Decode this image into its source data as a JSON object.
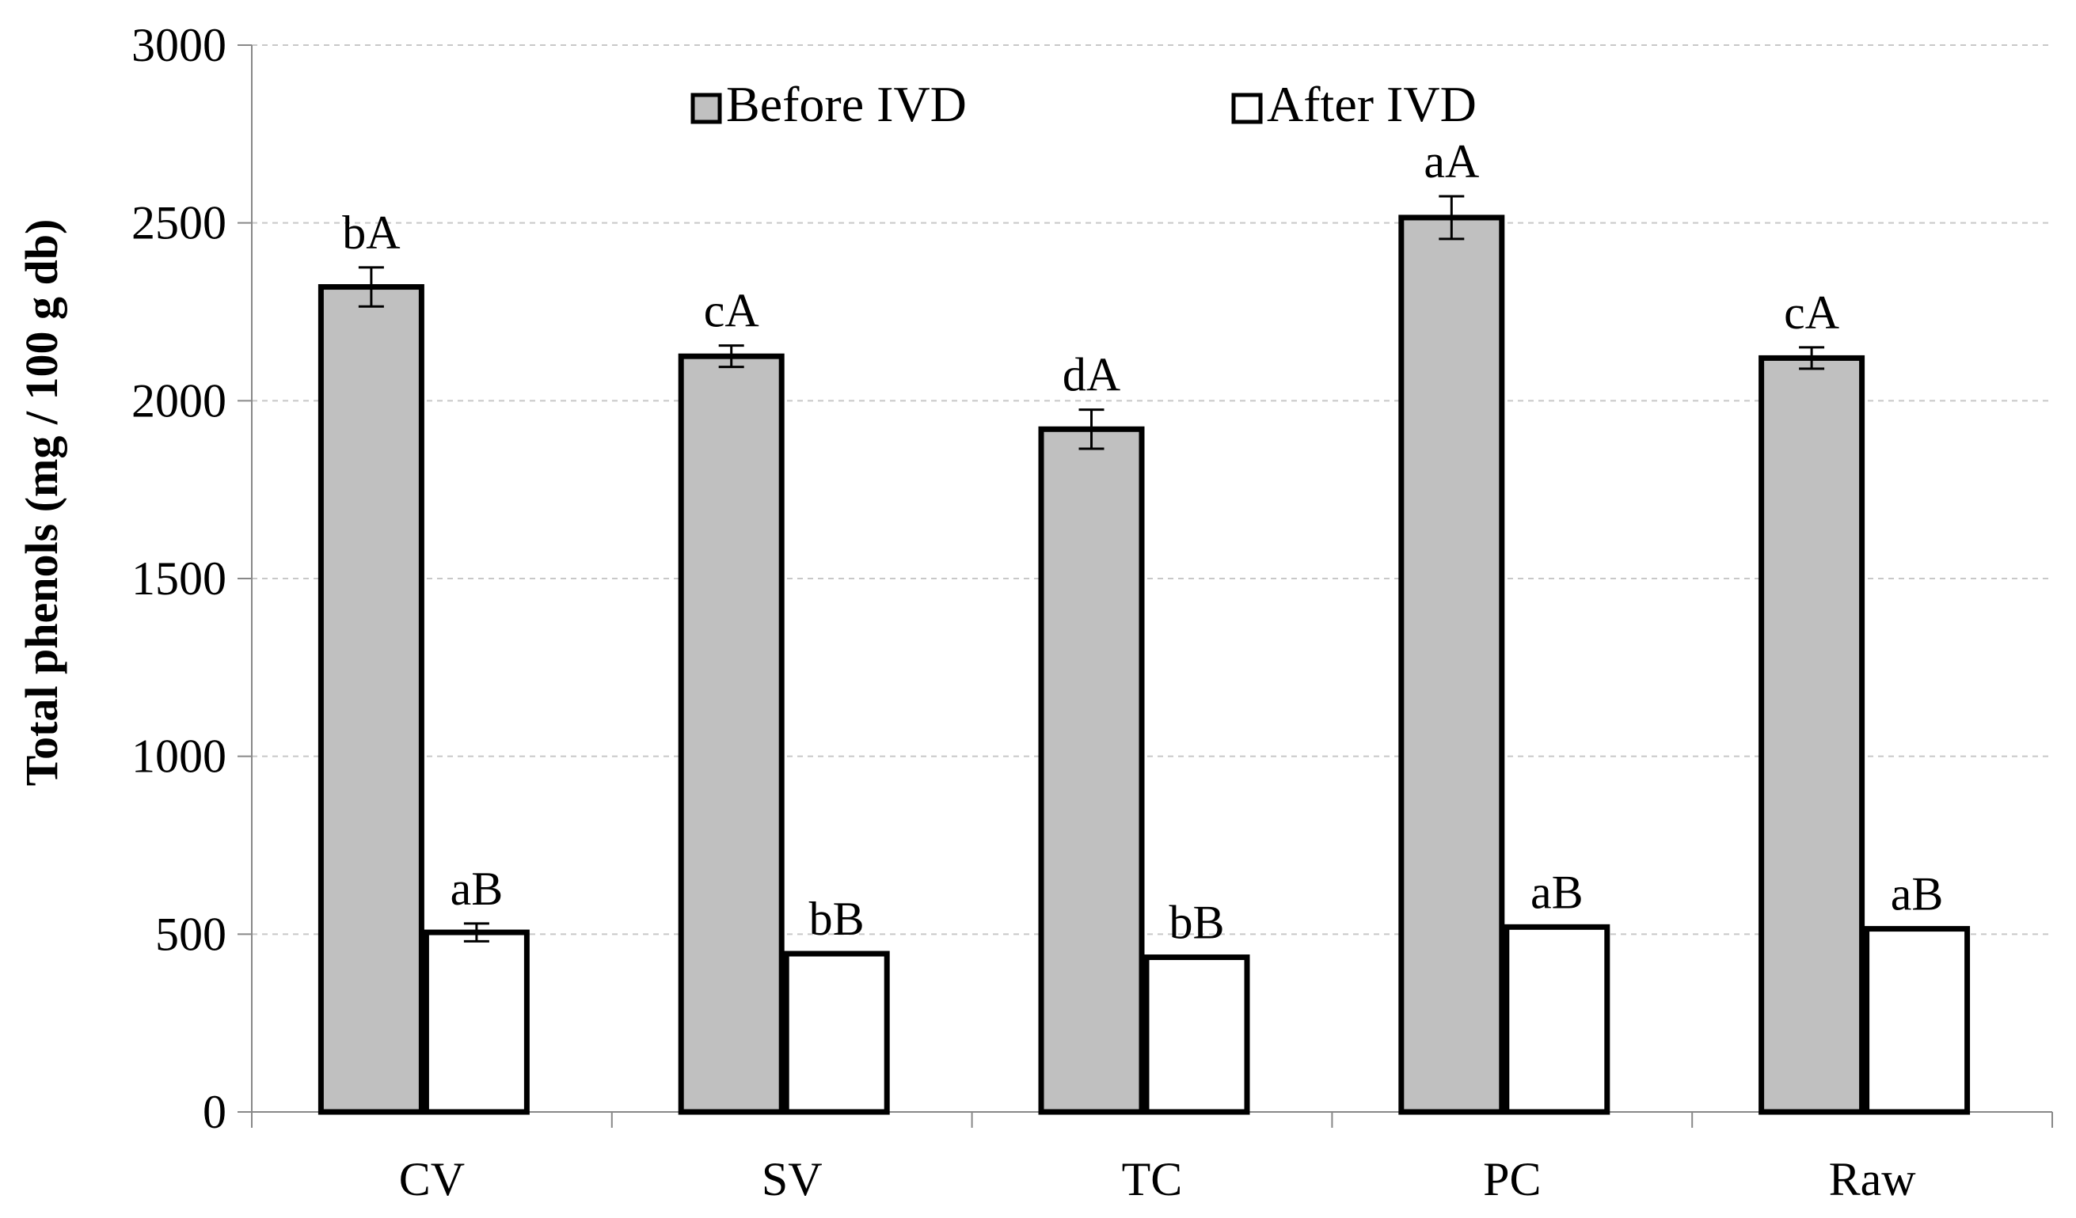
{
  "chart_data": {
    "type": "bar",
    "title": "",
    "xlabel": "",
    "ylabel": "Total phenols (mg / 100 g db)",
    "ylim": [
      0,
      3000
    ],
    "yticks": [
      0,
      500,
      1000,
      1500,
      2000,
      2500,
      3000
    ],
    "grid": true,
    "legend_position": "top-center",
    "categories": [
      "CV",
      "SV",
      "TC",
      "PC",
      "Raw"
    ],
    "series": [
      {
        "name": "Before IVD",
        "color": "#c0c0c0",
        "values": [
          2320,
          2125,
          1920,
          2515,
          2120
        ],
        "errors": [
          55,
          30,
          55,
          60,
          30
        ],
        "labels": [
          "bA",
          "cA",
          "dA",
          "aA",
          "cA"
        ]
      },
      {
        "name": "After IVD",
        "color": "#ffffff",
        "values": [
          505,
          445,
          435,
          520,
          515
        ],
        "errors": [
          25,
          0,
          0,
          0,
          0
        ],
        "labels": [
          "aB",
          "bB",
          "bB",
          "aB",
          "aB"
        ]
      }
    ]
  }
}
